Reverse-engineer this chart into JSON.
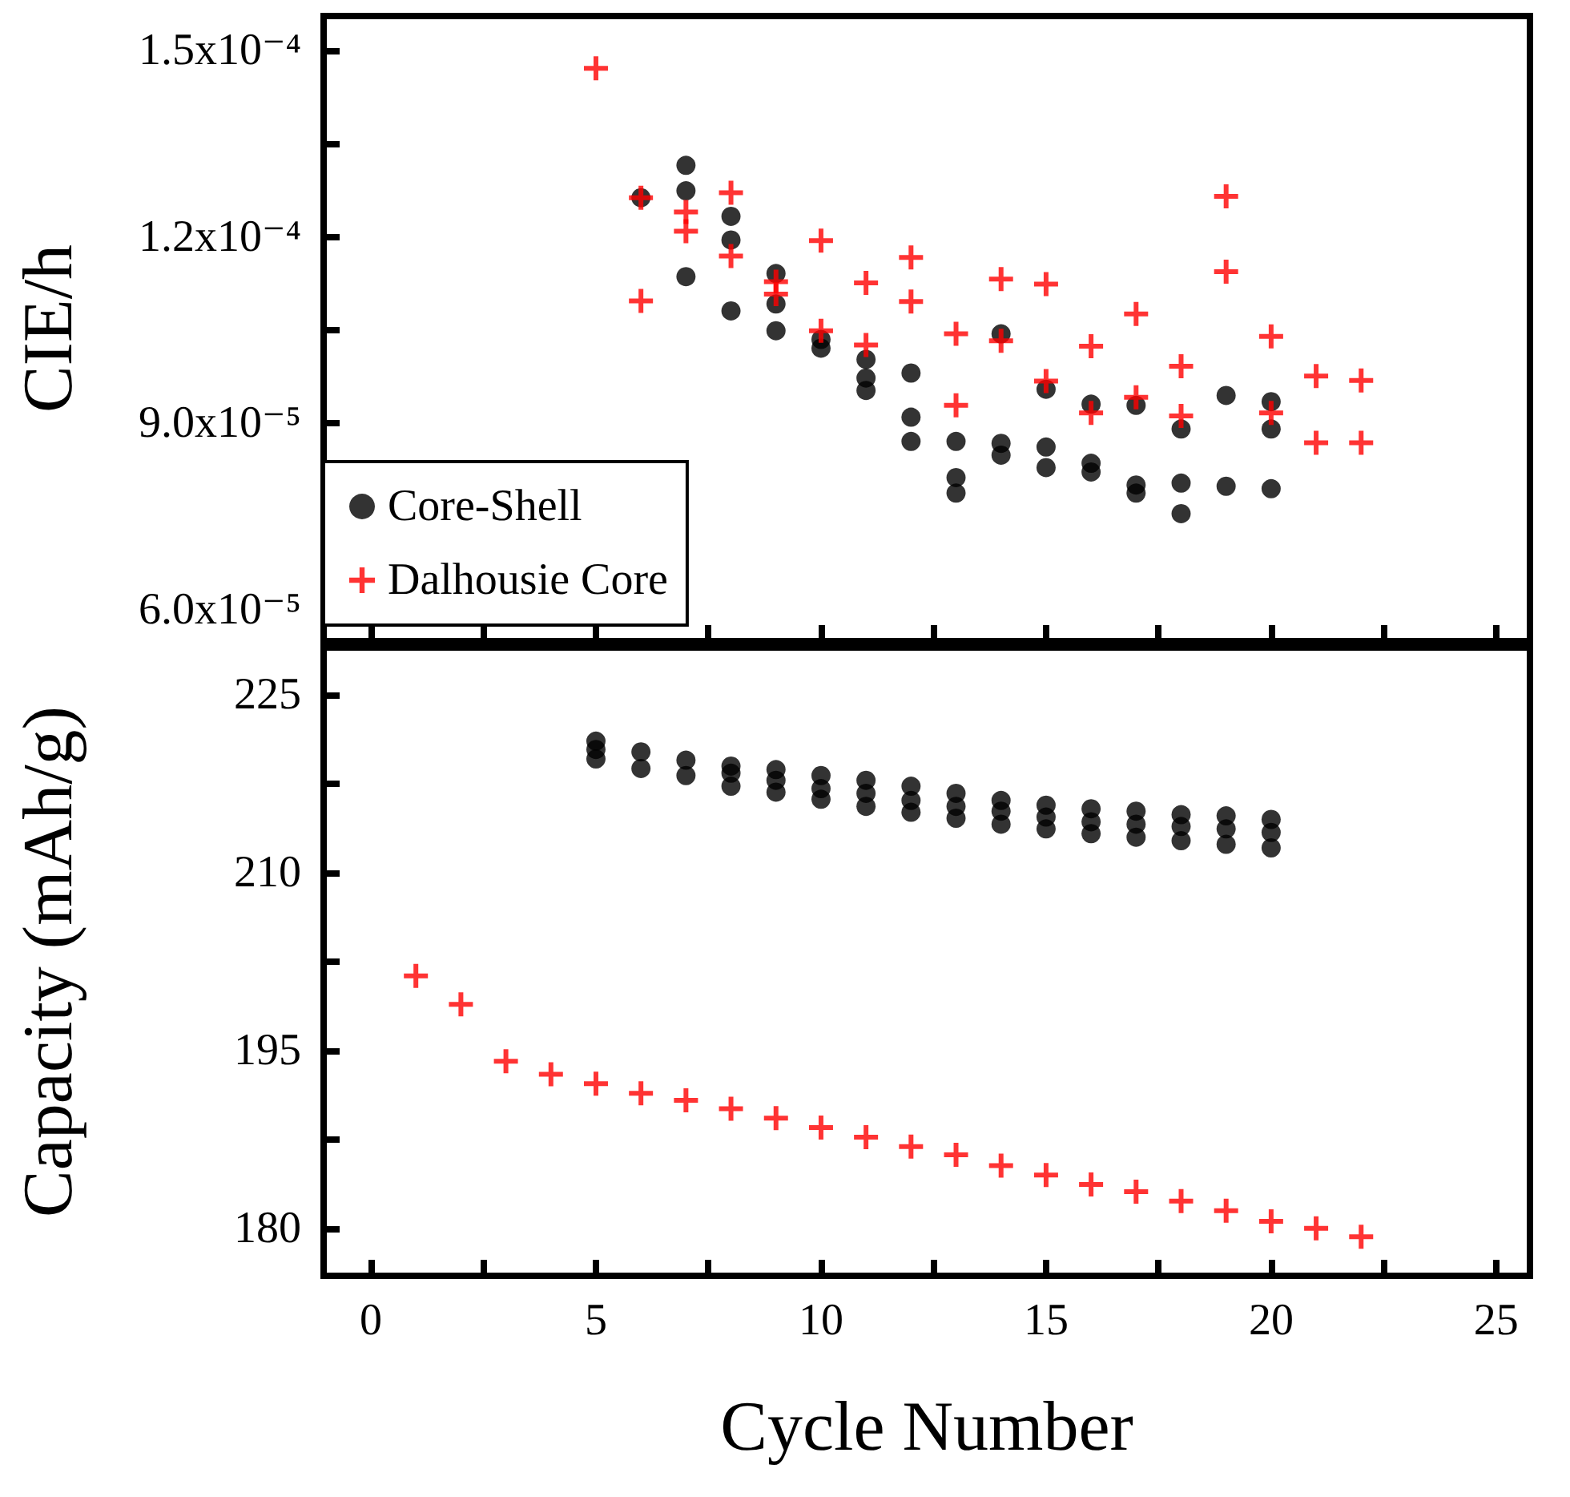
{
  "chart_data": [
    {
      "type": "scatter",
      "ylabel": "CIE/h",
      "xlim": [
        -1.05,
        25.75
      ],
      "ylim": [
        5.5e-05,
        0.0001555
      ],
      "xticks": [
        0,
        {
          "value": 2.5,
          "label": null
        },
        5,
        {
          "value": 7.5,
          "label": null
        },
        10,
        {
          "value": 12.5,
          "label": null
        },
        15,
        {
          "value": 17.5,
          "label": null
        },
        20,
        {
          "value": 22.5,
          "label": null
        },
        25
      ],
      "yticks": [
        {
          "value": 6e-05,
          "label": "6.0x10⁻⁵"
        },
        {
          "value": 7.5e-05,
          "label": null
        },
        {
          "value": 9e-05,
          "label": "9.0x10⁻⁵"
        },
        {
          "value": 0.000105,
          "label": null
        },
        {
          "value": 0.00012,
          "label": "1.2x10⁻⁴"
        },
        {
          "value": 0.000135,
          "label": null
        },
        {
          "value": 0.00015,
          "label": "1.5x10⁻⁴"
        }
      ],
      "tick_labels": "y",
      "legend": "bottom left",
      "series": [
        {
          "name": "Core-Shell",
          "color": "#000000",
          "marker": "circle",
          "x": [
            6,
            7,
            7,
            7,
            8,
            8,
            8,
            9,
            9,
            9,
            10,
            10,
            11,
            11,
            11,
            12,
            12,
            12,
            13,
            13,
            13,
            14,
            14,
            14,
            15,
            15,
            15,
            16,
            16,
            16,
            17,
            17,
            17,
            18,
            18,
            18,
            19,
            19,
            20,
            20,
            20
          ],
          "values": [
            0.0001263,
            0.0001315,
            0.0001274,
            0.0001136,
            0.0001233,
            0.0001195,
            0.0001081,
            0.0001141,
            0.0001092,
            0.0001049,
            0.0001035,
            0.0001021,
            0.0001003,
            9.73e-05,
            9.53e-05,
            9.81e-05,
            9.1e-05,
            8.71e-05,
            8.71e-05,
            8.13e-05,
            7.88e-05,
            0.0001044,
            8.68e-05,
            8.49e-05,
            9.55e-05,
            8.62e-05,
            8.29e-05,
            9.31e-05,
            8.36e-05,
            8.22e-05,
            9.29e-05,
            8.01e-05,
            7.88e-05,
            8.91e-05,
            8.04e-05,
            7.55e-05,
            9.45e-05,
            7.99e-05,
            9.35e-05,
            8.91e-05,
            7.95e-05
          ]
        },
        {
          "name": "Dalhousie Core",
          "color": "#ff0000",
          "marker": "cross",
          "x": [
            5,
            6,
            6,
            7,
            7,
            8,
            8,
            9,
            9,
            10,
            10,
            11,
            11,
            12,
            12,
            13,
            13,
            14,
            14,
            15,
            15,
            16,
            16,
            17,
            17,
            18,
            18,
            19,
            19,
            20,
            20,
            21,
            21,
            22,
            22
          ],
          "values": [
            0.0001471,
            0.0001263,
            0.0001097,
            0.000124,
            0.0001209,
            0.0001271,
            0.0001169,
            0.0001128,
            0.0001108,
            0.0001194,
            0.0001049,
            0.0001126,
            0.0001026,
            0.0001167,
            0.0001096,
            0.0001044,
            9.29e-05,
            0.0001132,
            0.0001033,
            0.0001124,
            9.68e-05,
            0.0001024,
            9.17e-05,
            0.0001076,
            9.42e-05,
            9.92e-05,
            9.12e-05,
            0.0001265,
            0.0001144,
            0.000104,
            9.17e-05,
            9.76e-05,
            8.69e-05,
            9.69e-05,
            8.69e-05
          ]
        }
      ]
    },
    {
      "type": "scatter",
      "xlabel": "Cycle Number",
      "ylabel": "Capacity (mAh/g)",
      "xlim": [
        -1.05,
        25.75
      ],
      "ylim": [
        176,
        229
      ],
      "xticks": [
        0,
        {
          "value": 2.5,
          "label": null
        },
        5,
        {
          "value": 7.5,
          "label": null
        },
        10,
        {
          "value": 12.5,
          "label": null
        },
        15,
        {
          "value": 17.5,
          "label": null
        },
        20,
        {
          "value": 22.5,
          "label": null
        },
        25
      ],
      "yticks": [
        180,
        {
          "value": 187.5,
          "label": null
        },
        195,
        {
          "value": 202.5,
          "label": null
        },
        210,
        {
          "value": 217.5,
          "label": null
        },
        225
      ],
      "series": [
        {
          "color": "#000000",
          "marker": "circle",
          "x": [
            5,
            5,
            5,
            6,
            6,
            7,
            7,
            8,
            8,
            8,
            9,
            9,
            9,
            10,
            10,
            10,
            11,
            11,
            11,
            12,
            12,
            12,
            13,
            13,
            13,
            14,
            14,
            14,
            15,
            15,
            15,
            16,
            16,
            16,
            17,
            17,
            17,
            18,
            18,
            18,
            19,
            19,
            19,
            20,
            20,
            20
          ],
          "values": [
            221.1,
            220.4,
            219.6,
            220.2,
            218.8,
            219.5,
            218.2,
            219.0,
            218.4,
            217.3,
            218.7,
            217.8,
            216.8,
            218.2,
            217.1,
            216.2,
            217.8,
            216.7,
            215.6,
            217.3,
            216.1,
            215.1,
            216.7,
            215.6,
            214.6,
            216.1,
            215.2,
            214.1,
            215.7,
            214.7,
            213.7,
            215.4,
            214.3,
            213.3,
            215.2,
            214.1,
            213.0,
            214.9,
            213.9,
            212.7,
            214.8,
            213.7,
            212.4,
            214.5,
            213.4,
            212.1
          ]
        },
        {
          "color": "#ff0000",
          "marker": "cross",
          "x": [
            1,
            2,
            3,
            4,
            5,
            6,
            7,
            8,
            9,
            10,
            11,
            12,
            13,
            14,
            15,
            16,
            17,
            18,
            19,
            20,
            21,
            22
          ],
          "values": [
            201.3,
            198.9,
            194.1,
            193.0,
            192.2,
            191.4,
            190.8,
            190.1,
            189.3,
            188.5,
            187.7,
            186.9,
            186.2,
            185.3,
            184.5,
            183.7,
            183.1,
            182.3,
            181.5,
            180.6,
            180.0,
            179.3
          ]
        }
      ]
    }
  ]
}
